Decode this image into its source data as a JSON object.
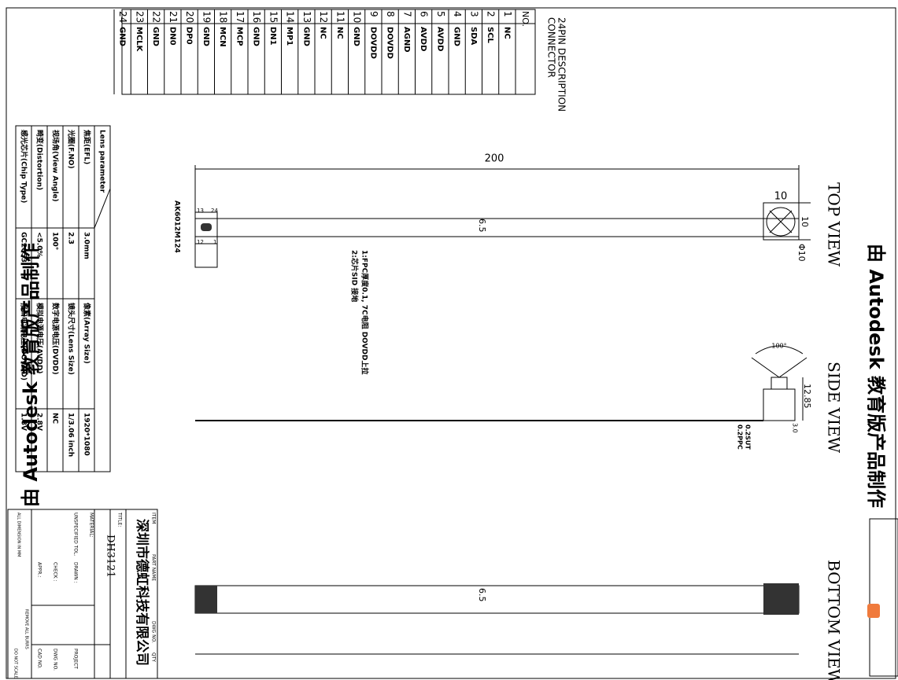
{
  "connector": {
    "title": [
      "24PIN DESCRIPTION",
      "CONNECTOR"
    ],
    "header": "NO.",
    "pins": [
      {
        "no": "1",
        "signal": "NC"
      },
      {
        "no": "2",
        "signal": "SCL"
      },
      {
        "no": "3",
        "signal": "SDA"
      },
      {
        "no": "4",
        "signal": "GND"
      },
      {
        "no": "5",
        "signal": "AVDD"
      },
      {
        "no": "6",
        "signal": "AVDD"
      },
      {
        "no": "7",
        "signal": "AGND"
      },
      {
        "no": "8",
        "signal": "DOVDD"
      },
      {
        "no": "9",
        "signal": "DOVDD"
      },
      {
        "no": "10",
        "signal": "GND"
      },
      {
        "no": "11",
        "signal": "NC"
      },
      {
        "no": "12",
        "signal": "NC"
      },
      {
        "no": "13",
        "signal": "GND"
      },
      {
        "no": "14",
        "signal": "MP1"
      },
      {
        "no": "15",
        "signal": "DN1"
      },
      {
        "no": "16",
        "signal": "GND"
      },
      {
        "no": "17",
        "signal": "MCP"
      },
      {
        "no": "18",
        "signal": "MCN"
      },
      {
        "no": "19",
        "signal": "GND"
      },
      {
        "no": "20",
        "signal": "DP0"
      },
      {
        "no": "21",
        "signal": "DN0"
      },
      {
        "no": "22",
        "signal": "GND"
      },
      {
        "no": "23",
        "signal": "MCLK"
      },
      {
        "no": "24",
        "signal": "GND"
      }
    ]
  },
  "views": {
    "top": "TOP VIEW",
    "side": "SIDE VIEW",
    "bottom": "BOTTOM VIEW"
  },
  "dimensions": {
    "length": "200",
    "width_top": "6.5",
    "width_bottom": "6.5",
    "lens_w": "10",
    "lens_h": "10",
    "lens_dia": "Φ10",
    "height": "12.85",
    "fov": "100°",
    "thickness": "3.0",
    "fpc": "0.2PPC",
    "stiffener": "0.2SUT"
  },
  "part_number": "AK6012M124",
  "pin_marks": [
    "13",
    "24",
    "12",
    "1"
  ],
  "notes": [
    "1:FPC厚度0.1, 7C电阻 DOVDD上拉",
    "2:芯片SID 接地"
  ],
  "lens_table": {
    "title": "Lens parameter",
    "rows": [
      {
        "label": "焦距(EFL)",
        "value": "3.0mm",
        "label2": "像素(Array Size)",
        "value2": "1920*1080"
      },
      {
        "label": "光圈(F.NO)",
        "value": "2.3",
        "label2": "镜头尺寸(Lens Size)",
        "value2": "1/3.06 inch"
      },
      {
        "label": "视场角(View Angle)",
        "value": "100°",
        "label2": "数字电源电压(DVDD)",
        "value2": "NC"
      },
      {
        "label": "畸变(Distortion)",
        "value": "<5.0%",
        "label2": "模拟电源电压(AVDD)",
        "value2": "2.8V"
      },
      {
        "label": "感光芯片(Chip Type)",
        "value": "GC2053",
        "label2": "接口电源电压(DOVDD)",
        "value2": "1.8V"
      }
    ]
  },
  "title_block": {
    "company": "深圳市德虹科技有限公司",
    "title_label": "TITLE:",
    "title": "DH3121",
    "item": "ITEM",
    "part_name": "PART NAME",
    "dwg_no": "DWG NO.",
    "qty": "QTY",
    "material": "MATERIAL:",
    "tolerance": "UNSPECIFIED TOL.",
    "drawn": "DRAWN :",
    "check": "CHECK :",
    "appr": "APPR.:",
    "project": "PROJECT",
    "dwg": "DWG NO.",
    "cad": "CAD NO.",
    "units": "ALL DIMENSION IN MM",
    "burrs": "REMOVE ALL BURRS",
    "scale": "DO NOT SCALE"
  },
  "watermark": "由 Autodesk 教育版产品制作"
}
